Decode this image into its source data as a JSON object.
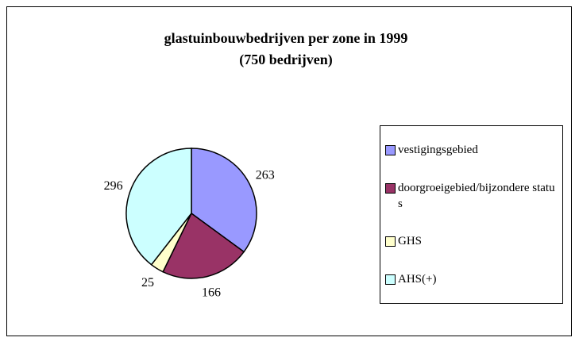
{
  "chart_data": {
    "type": "pie",
    "title": "glastuinbouwbedrijven per zone in 1999",
    "subtitle": "(750 bedrijven)",
    "categories": [
      "vestigingsgebied",
      "doorgroeigebied/bijzondere status",
      "GHS",
      "AHS(+)"
    ],
    "values": [
      263,
      166,
      25,
      296
    ],
    "colors": [
      "#9999ff",
      "#993366",
      "#ffffcc",
      "#ccffff"
    ],
    "legend": "right"
  }
}
